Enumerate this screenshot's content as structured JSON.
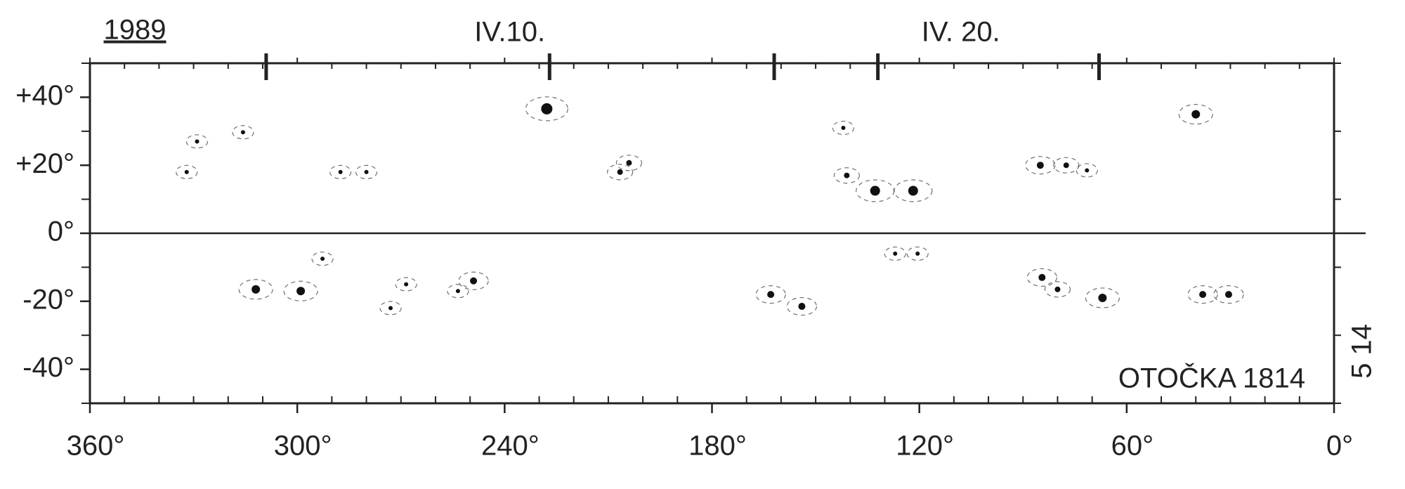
{
  "chart_data": {
    "type": "scatter",
    "title": "1989",
    "annotations": [
      {
        "text": "IV.10.",
        "x": 238.5
      },
      {
        "text": "IV. 20.",
        "x": 108
      }
    ],
    "label": "OTOČKA 1814",
    "side_label": "5 14",
    "xlim": [
      360,
      0
    ],
    "ylim": [
      -50,
      50
    ],
    "xticks": [
      {
        "value": 360,
        "label": "360°"
      },
      {
        "value": 300,
        "label": "300°"
      },
      {
        "value": 240,
        "label": "240°"
      },
      {
        "value": 180,
        "label": "180°"
      },
      {
        "value": 120,
        "label": "120°"
      },
      {
        "value": 60,
        "label": "60°"
      },
      {
        "value": 0,
        "label": "0°"
      }
    ],
    "yticks": [
      {
        "value": 40,
        "label": "+40°"
      },
      {
        "value": 20,
        "label": "+20°"
      },
      {
        "value": 0,
        "label": "0°"
      },
      {
        "value": -20,
        "label": "-20°"
      },
      {
        "value": -40,
        "label": "-40°"
      }
    ],
    "minor_xticks": [
      10,
      20,
      30,
      40,
      50,
      70,
      80,
      90,
      100,
      110,
      130,
      140,
      150,
      160,
      170,
      190,
      200,
      210,
      220,
      230,
      250,
      260,
      270,
      280,
      290,
      310,
      320,
      330,
      340,
      350
    ],
    "minor_yticks": [
      -50,
      -30,
      -10,
      10,
      30,
      50
    ],
    "day_markers": [
      309,
      227,
      162,
      132,
      68
    ],
    "series": [
      {
        "color": "#111111",
        "x": [
          227.8,
          132.8,
          121.8,
          142,
          141,
          85,
          77.5,
          40,
          30.5,
          38,
          67,
          84.5,
          80,
          154,
          163,
          120.5,
          127,
          249,
          253.5,
          299,
          312,
          268.5,
          273,
          292.7,
          287.5,
          280,
          315.7,
          329,
          332,
          204,
          206.6,
          71.5
        ],
        "y": [
          36.6,
          12.5,
          12.5,
          31,
          17,
          20,
          20,
          35,
          -18,
          -18,
          -19,
          -13,
          -16.5,
          -21.5,
          -18,
          -6,
          -6,
          -14,
          -17,
          -17,
          -16.5,
          -15,
          -22,
          -7.5,
          18,
          18,
          29.7,
          27,
          18,
          20.7,
          18,
          18.5
        ],
        "sizes": [
          4,
          3.5,
          3.5,
          1.5,
          2,
          2.5,
          2,
          3,
          2.5,
          2.5,
          3,
          2.5,
          2,
          2.5,
          2.5,
          1.5,
          1.5,
          2.5,
          1.5,
          3,
          3,
          1.5,
          1.5,
          1.5,
          1.5,
          1.5,
          1.5,
          1.5,
          1.5,
          2,
          2,
          1.5
        ]
      }
    ]
  }
}
